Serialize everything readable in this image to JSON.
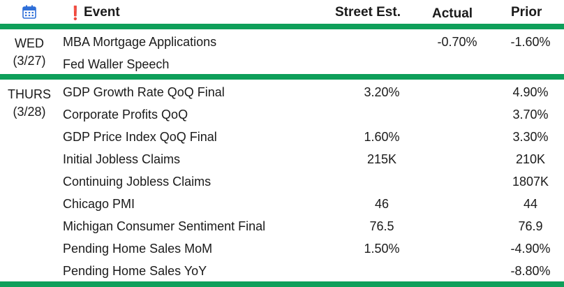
{
  "header": {
    "event_label": "Event",
    "alert_glyph": "❗",
    "street_est": "Street Est.",
    "actual": "Actual",
    "prior": "Prior"
  },
  "colors": {
    "rule": "#0e9f5a",
    "alert": "#e0261c",
    "calendar": "#2f6fd8"
  },
  "icons": {
    "calendar": "calendar-icon",
    "alert": "exclamation-icon"
  },
  "days": [
    {
      "day": "WED",
      "date": "(3/27)",
      "rows": [
        {
          "event": "MBA Mortgage Applications",
          "est": "",
          "actual": "-0.70%",
          "prior": "-1.60%"
        },
        {
          "event": "Fed Waller Speech",
          "est": "",
          "actual": "",
          "prior": ""
        }
      ]
    },
    {
      "day": "THURS",
      "date": "(3/28)",
      "rows": [
        {
          "event": "GDP Growth Rate QoQ Final",
          "est": "3.20%",
          "actual": "",
          "prior": "4.90%"
        },
        {
          "event": "Corporate Profits QoQ",
          "est": "",
          "actual": "",
          "prior": "3.70%"
        },
        {
          "event": "GDP Price Index QoQ Final",
          "est": "1.60%",
          "actual": "",
          "prior": "3.30%"
        },
        {
          "event": "Initial Jobless Claims",
          "est": "215K",
          "actual": "",
          "prior": "210K"
        },
        {
          "event": "Continuing Jobless Claims",
          "est": "",
          "actual": "",
          "prior": "1807K"
        },
        {
          "event": "Chicago PMI",
          "est": "46",
          "actual": "",
          "prior": "44"
        },
        {
          "event": "Michigan Consumer Sentiment Final",
          "est": "76.5",
          "actual": "",
          "prior": "76.9"
        },
        {
          "event": "Pending Home Sales MoM",
          "est": "1.50%",
          "actual": "",
          "prior": "-4.90%"
        },
        {
          "event": "Pending Home Sales YoY",
          "est": "",
          "actual": "",
          "prior": "-8.80%"
        }
      ]
    }
  ]
}
